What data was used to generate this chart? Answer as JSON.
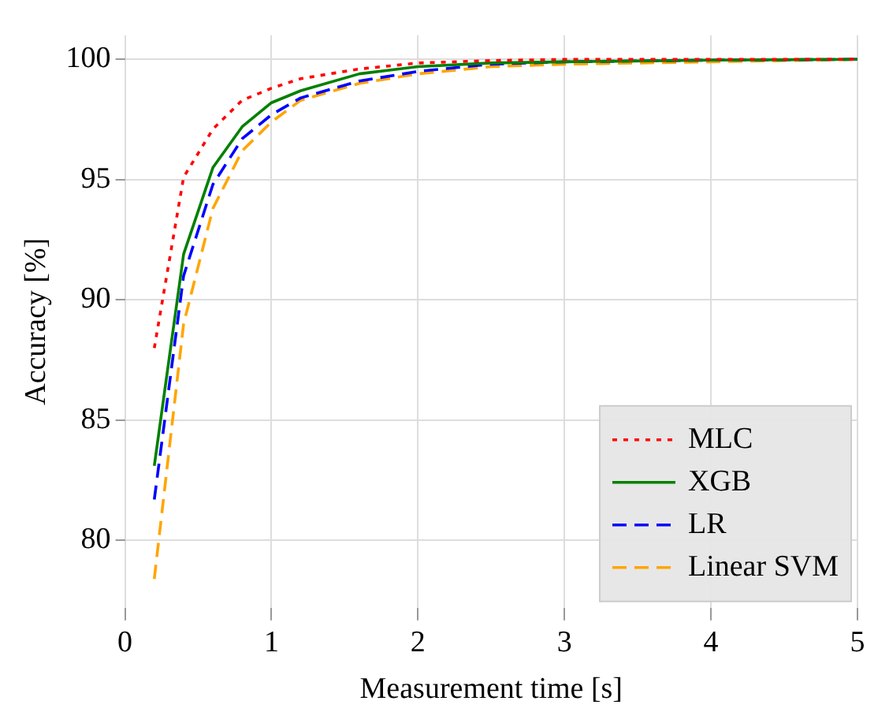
{
  "chart_data": {
    "type": "line",
    "xlabel": "Measurement time [s]",
    "ylabel": "Accuracy [%]",
    "x": [
      0.2,
      0.4,
      0.6,
      0.8,
      1.0,
      1.2,
      1.6,
      2.0,
      2.5,
      3,
      4,
      5
    ],
    "series": [
      {
        "name": "MLC",
        "color": "#ff0000",
        "line_style": "dotted",
        "values": [
          88.0,
          95.1,
          97.1,
          98.3,
          98.8,
          99.2,
          99.6,
          99.85,
          99.95,
          100,
          100,
          100
        ]
      },
      {
        "name": "XGB",
        "color": "#008000",
        "line_style": "solid",
        "values": [
          83.1,
          91.9,
          95.5,
          97.2,
          98.2,
          98.7,
          99.4,
          99.7,
          99.85,
          99.9,
          99.97,
          100
        ]
      },
      {
        "name": "LR",
        "color": "#0000ff",
        "line_style": "dashed",
        "values": [
          81.7,
          91.0,
          94.8,
          96.7,
          97.7,
          98.4,
          99.1,
          99.5,
          99.8,
          99.9,
          99.97,
          100
        ]
      },
      {
        "name": "Linear SVM",
        "color": "#ffa500",
        "line_style": "dashed",
        "values": [
          78.4,
          89.0,
          93.8,
          96.2,
          97.4,
          98.3,
          99.0,
          99.4,
          99.7,
          99.8,
          99.9,
          100
        ]
      }
    ],
    "xlim": [
      0,
      5
    ],
    "xticks": [
      0,
      1,
      2,
      3,
      4,
      5
    ],
    "ylim": [
      77.2,
      101
    ],
    "yticks": [
      80,
      85,
      90,
      95,
      100
    ],
    "grid": true,
    "legend": "bottom right",
    "marker": "none"
  }
}
